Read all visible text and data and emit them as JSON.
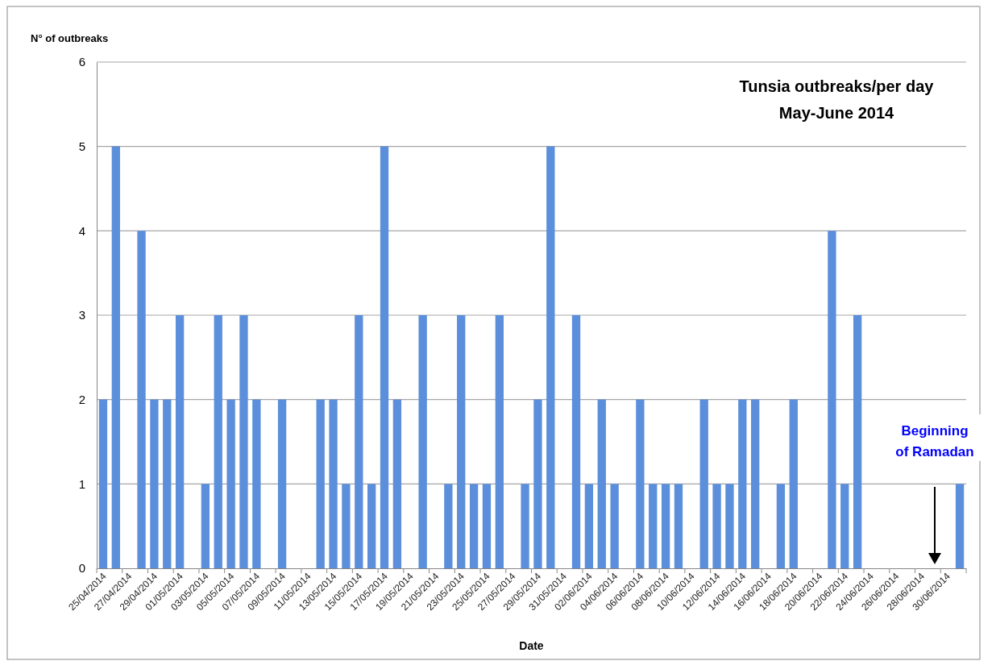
{
  "chart_data": {
    "type": "bar",
    "title": "Tunsia outbreaks/per day",
    "subtitle": "May-June 2014",
    "xlabel": "Date",
    "ylabel": "N° of outbreaks",
    "annotations": [
      "Beginning of Ramadan"
    ],
    "categories": [
      "25/04/2014",
      null,
      "27/04/2014",
      null,
      "29/04/2014",
      null,
      "01/05/2014",
      null,
      "03/05/2014",
      null,
      "05/05/2014",
      null,
      "07/05/2014",
      null,
      "09/05/2014",
      null,
      "11/05/2014",
      null,
      "13/05/2014",
      null,
      "15/05/2014",
      null,
      "17/05/2014",
      null,
      "19/05/2014",
      null,
      "21/05/2014",
      null,
      "23/05/2014",
      null,
      "25/05/2014",
      null,
      "27/05/2014",
      null,
      "29/05/2014",
      null,
      "31/05/2014",
      null,
      "02/06/2014",
      null,
      "04/06/2014",
      null,
      "06/06/2014",
      null,
      "08/06/2014",
      null,
      "10/06/2014",
      null,
      "12/06/2014",
      null,
      "14/06/2014",
      null,
      "16/06/2014",
      null,
      "18/06/2014",
      null,
      "20/06/2014",
      null,
      "22/06/2014",
      null,
      "24/06/2014",
      null,
      "26/06/2014",
      null,
      "28/06/2014",
      null,
      "30/06/2014",
      null
    ],
    "values": [
      2,
      5,
      0,
      4,
      2,
      2,
      3,
      0,
      1,
      3,
      2,
      3,
      2,
      0,
      2,
      0,
      0,
      2,
      2,
      1,
      3,
      1,
      5,
      2,
      0,
      3,
      0,
      1,
      3,
      1,
      1,
      3,
      0,
      1,
      2,
      5,
      0,
      3,
      1,
      2,
      1,
      0,
      2,
      1,
      1,
      1,
      0,
      2,
      1,
      1,
      2,
      2,
      0,
      1,
      2,
      0,
      0,
      4,
      1,
      3,
      0,
      0,
      0,
      0,
      0,
      0,
      0,
      1
    ],
    "color": "#5b8fdb",
    "ylim": [
      0,
      6
    ],
    "yticks": [
      0,
      1,
      2,
      3,
      4,
      5,
      6
    ],
    "grid": "y"
  }
}
